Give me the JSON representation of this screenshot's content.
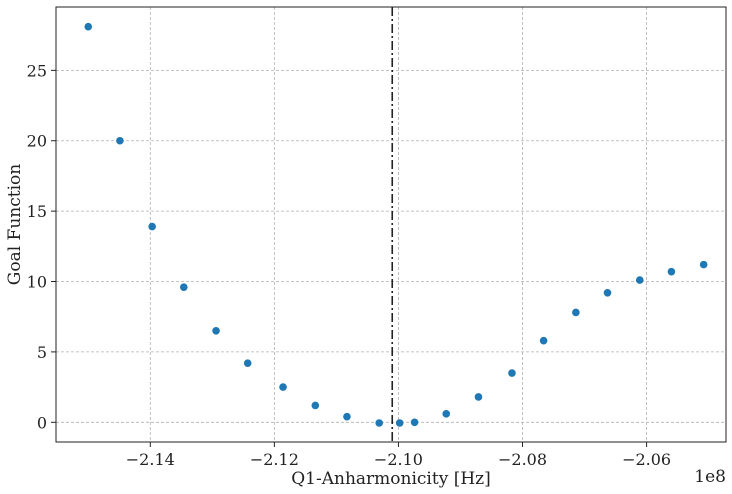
{
  "chart_data": {
    "type": "scatter",
    "xlabel": "Q1-Anharmonicity [Hz]",
    "ylabel": "Goal Function",
    "x_offset_label": "1e8",
    "xlim": [
      -2.1552,
      -2.0472
    ],
    "ylim": [
      -1.4,
      29.5
    ],
    "x_ticks": [
      -2.14,
      -2.12,
      -2.1,
      -2.08,
      -2.06
    ],
    "x_tick_labels": [
      "−2.14",
      "−2.12",
      "−2.10",
      "−2.08",
      "−2.06"
    ],
    "y_ticks": [
      0,
      5,
      10,
      15,
      20,
      25
    ],
    "y_tick_labels": [
      "0",
      "5",
      "10",
      "15",
      "20",
      "25"
    ],
    "grid": true,
    "marker_color": "#1f77b4",
    "vline": {
      "x": -2.101,
      "style": "dash-dot",
      "color": "#222222"
    },
    "series": [
      {
        "x": [
          -2.15,
          -2.1449,
          -2.1397,
          -2.1346,
          -2.1294,
          -2.1243,
          -2.1186,
          -2.1134,
          -2.1083,
          -2.1031,
          -2.0998,
          -2.0974,
          -2.0923,
          -2.0871,
          -2.0817,
          -2.0766,
          -2.0714,
          -2.0663,
          -2.0611,
          -2.056,
          -2.0508
        ],
        "y": [
          28.1,
          20.0,
          13.9,
          9.6,
          6.5,
          4.2,
          2.5,
          1.2,
          0.4,
          -0.05,
          -0.05,
          0.0,
          0.6,
          1.8,
          3.5,
          5.8,
          7.8,
          9.2,
          10.1,
          10.7,
          11.2
        ]
      }
    ]
  }
}
